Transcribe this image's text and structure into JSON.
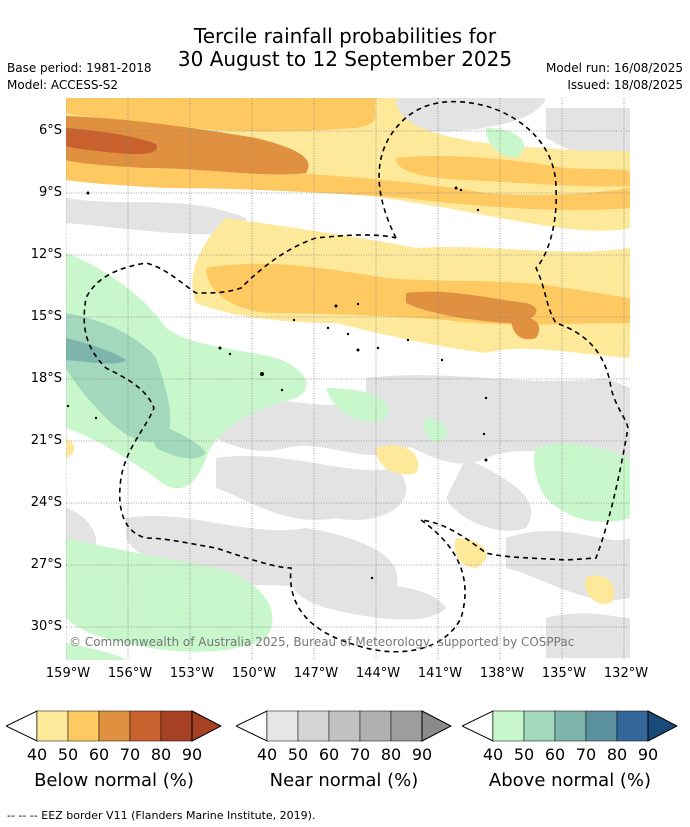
{
  "header": {
    "title_line1": "Tercile rainfall probabilities for",
    "title_line2": "30 August to 12 September 2025",
    "base_period": "Base period: 1981-2018",
    "model": "Model: ACCESS-S2",
    "model_run": "Model run: 16/08/2025",
    "issued": "Issued: 18/08/2025"
  },
  "map": {
    "lat_labels": [
      "6°S",
      "9°S",
      "12°S",
      "15°S",
      "18°S",
      "21°S",
      "24°S",
      "27°S",
      "30°S"
    ],
    "lon_labels": [
      "159°W",
      "156°W",
      "153°W",
      "150°W",
      "147°W",
      "144°W",
      "141°W",
      "138°W",
      "135°W",
      "132°W"
    ],
    "credit": "© Commonwealth of Australia 2025, Bureau of Meteorology, supported by COSPPac"
  },
  "legends": [
    {
      "title": "Below normal (%)",
      "ticks": [
        "40",
        "50",
        "60",
        "70",
        "80",
        "90"
      ],
      "colors": [
        "#fee99a",
        "#fdc960",
        "#e0913f",
        "#c9612e",
        "#a74123",
        "#a74123"
      ]
    },
    {
      "title": "Near normal (%)",
      "ticks": [
        "40",
        "50",
        "60",
        "70",
        "80",
        "90"
      ],
      "colors": [
        "#e6e6e6",
        "#d4d4d4",
        "#c2c2c2",
        "#b0b0b0",
        "#9d9d9d",
        "#8a8a8a"
      ]
    },
    {
      "title": "Above normal (%)",
      "ticks": [
        "40",
        "50",
        "60",
        "70",
        "80",
        "90"
      ],
      "colors": [
        "#c8f7cc",
        "#a3d8bd",
        "#7db5ad",
        "#5b919f",
        "#33679a",
        "#1a4a7a"
      ]
    }
  ],
  "footnote": "-- -- -- EEZ border V11 (Flanders Marine Institute, 2019)."
}
